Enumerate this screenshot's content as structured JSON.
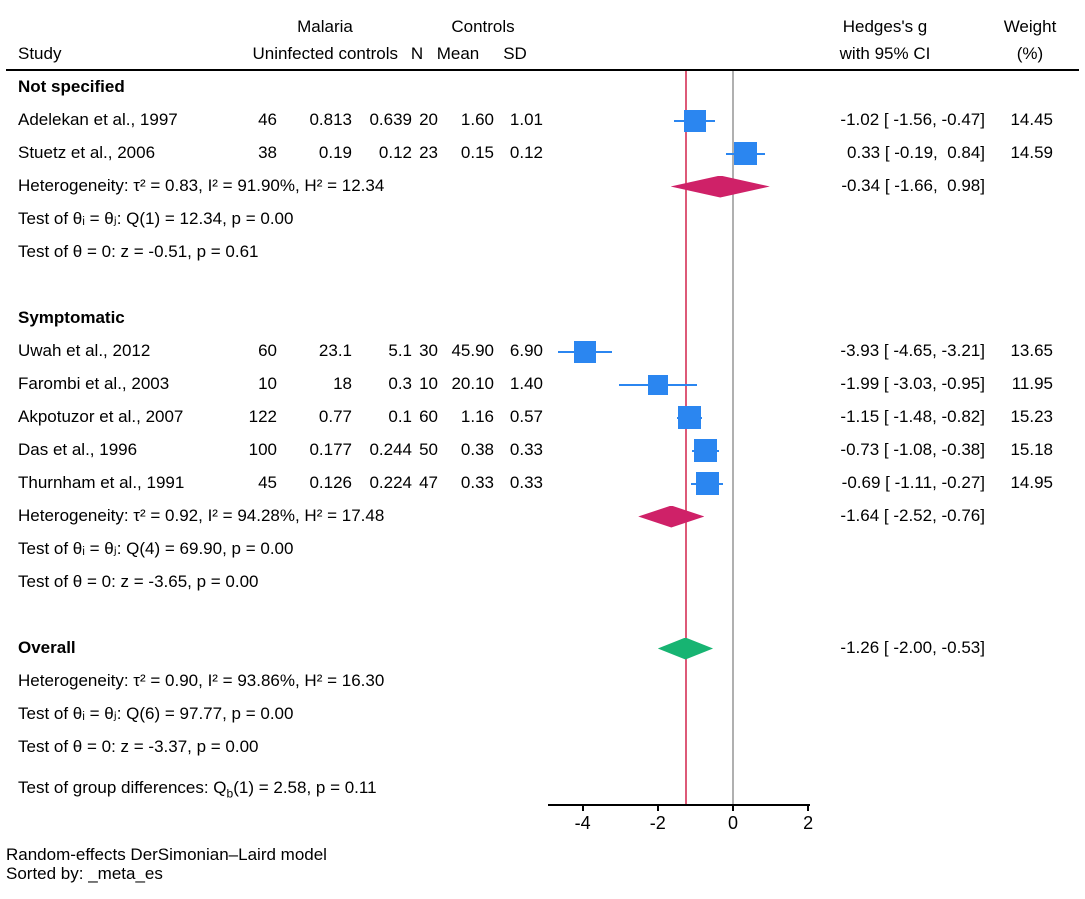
{
  "header": {
    "study": "Study",
    "group1_title": "Malaria",
    "group1_sub": "Uninfected controls",
    "group2_title": "Controls",
    "col_n": "N",
    "col_mean": "Mean",
    "col_sd": "SD",
    "es_title_line1": "Hedges's g",
    "es_title_line2": "with 95% CI",
    "weight_line1": "Weight",
    "weight_line2": "(%)"
  },
  "footer": {
    "line1": "Random-effects DerSimonian–Laird model",
    "line2": "Sorted by: _meta_es"
  },
  "colors": {
    "marker_blue": "#2b86f0",
    "diamond_crimson": "#cf2168",
    "diamond_green": "#17b472",
    "ref_red": "#dd5a78",
    "ref_gray": "#b0b0b0",
    "axis": "#000000"
  },
  "chart_data": {
    "type": "scatter",
    "subtype": "forest-plot",
    "effect_label": "Hedges's g",
    "xlim": [
      -4.9,
      2.2
    ],
    "x_ticks": [
      {
        "v": -4,
        "label": "-4"
      },
      {
        "v": -2,
        "label": "-2"
      },
      {
        "v": 0,
        "label": "0"
      },
      {
        "v": 2,
        "label": "2"
      }
    ],
    "null_line": 0,
    "overall_line": -1.26,
    "rows": [
      {
        "kind": "section",
        "label": "Not specified"
      },
      {
        "kind": "study",
        "label": "Adelekan et al., 1997",
        "cells": [
          "46",
          "0.813",
          "0.639",
          "20",
          "1.60",
          "1.01"
        ],
        "es": -1.02,
        "lo": -1.56,
        "hi": -0.47,
        "es_text": "-1.02 [ -1.56, -0.47]",
        "weight": "14.45",
        "weight_num": 14.45
      },
      {
        "kind": "study",
        "label": "Stuetz et al., 2006",
        "cells": [
          "38",
          "0.19",
          "0.12",
          "23",
          "0.15",
          "0.12"
        ],
        "es": 0.33,
        "lo": -0.19,
        "hi": 0.84,
        "es_text": "0.33 [ -0.19,  0.84]",
        "weight": "14.59",
        "weight_num": 14.59
      },
      {
        "kind": "stat-diamond",
        "label": "Heterogeneity: τ² = 0.83, I² = 91.90%, H² = 12.34",
        "es": -0.34,
        "lo": -1.66,
        "hi": 0.98,
        "color": "crimson",
        "es_text": "-0.34 [ -1.66,  0.98]"
      },
      {
        "kind": "stat",
        "label": "Test of θᵢ = θⱼ: Q(1) = 12.34, p = 0.00"
      },
      {
        "kind": "stat",
        "label": "Test of θ = 0: z = -0.51, p = 0.61"
      },
      {
        "kind": "blank"
      },
      {
        "kind": "section",
        "label": "Symptomatic"
      },
      {
        "kind": "study",
        "label": "Uwah et al., 2012",
        "cells": [
          "60",
          "23.1",
          "5.1",
          "30",
          "45.90",
          "6.90"
        ],
        "es": -3.93,
        "lo": -4.65,
        "hi": -3.21,
        "es_text": "-3.93 [ -4.65, -3.21]",
        "weight": "13.65",
        "weight_num": 13.65
      },
      {
        "kind": "study",
        "label": "Farombi et al., 2003",
        "cells": [
          "10",
          "18",
          "0.3",
          "10",
          "20.10",
          "1.40"
        ],
        "es": -1.99,
        "lo": -3.03,
        "hi": -0.95,
        "es_text": "-1.99 [ -3.03, -0.95]",
        "weight": "11.95",
        "weight_num": 11.95
      },
      {
        "kind": "study",
        "label": "Akpotuzor et al., 2007",
        "cells": [
          "122",
          "0.77",
          "0.1",
          "60",
          "1.16",
          "0.57"
        ],
        "es": -1.15,
        "lo": -1.48,
        "hi": -0.82,
        "es_text": "-1.15 [ -1.48, -0.82]",
        "weight": "15.23",
        "weight_num": 15.23
      },
      {
        "kind": "study",
        "label": "Das et al., 1996",
        "cells": [
          "100",
          "0.177",
          "0.244",
          "50",
          "0.38",
          "0.33"
        ],
        "es": -0.73,
        "lo": -1.08,
        "hi": -0.38,
        "es_text": "-0.73 [ -1.08, -0.38]",
        "weight": "15.18",
        "weight_num": 15.18
      },
      {
        "kind": "study",
        "label": "Thurnham et al., 1991",
        "cells": [
          "45",
          "0.126",
          "0.224",
          "47",
          "0.33",
          "0.33"
        ],
        "es": -0.69,
        "lo": -1.11,
        "hi": -0.27,
        "es_text": "-0.69 [ -1.11, -0.27]",
        "weight": "14.95",
        "weight_num": 14.95
      },
      {
        "kind": "stat-diamond",
        "label": "Heterogeneity: τ² = 0.92, I² = 94.28%, H² = 17.48",
        "es": -1.64,
        "lo": -2.52,
        "hi": -0.76,
        "color": "crimson",
        "es_text": "-1.64 [ -2.52, -0.76]"
      },
      {
        "kind": "stat",
        "label": "Test of θᵢ = θⱼ: Q(4) = 69.90, p = 0.00"
      },
      {
        "kind": "stat",
        "label": "Test of θ = 0: z = -3.65, p = 0.00"
      },
      {
        "kind": "blank"
      },
      {
        "kind": "overall",
        "label": "Overall",
        "es": -1.26,
        "lo": -2.0,
        "hi": -0.53,
        "color": "green",
        "es_text": "-1.26 [ -2.00, -0.53]"
      },
      {
        "kind": "stat",
        "label": "Heterogeneity: τ² = 0.90, I² = 93.86%, H² = 16.30"
      },
      {
        "kind": "stat",
        "label": "Test of θᵢ = θⱼ: Q(6) = 97.77, p = 0.00"
      },
      {
        "kind": "stat",
        "label": "Test of θ = 0: z = -3.37, p = 0.00"
      },
      {
        "kind": "groupdiff",
        "pre": "Test of group differences: Q",
        "sub": "b",
        "post": "(1) = 2.58, p = 0.11"
      }
    ]
  }
}
